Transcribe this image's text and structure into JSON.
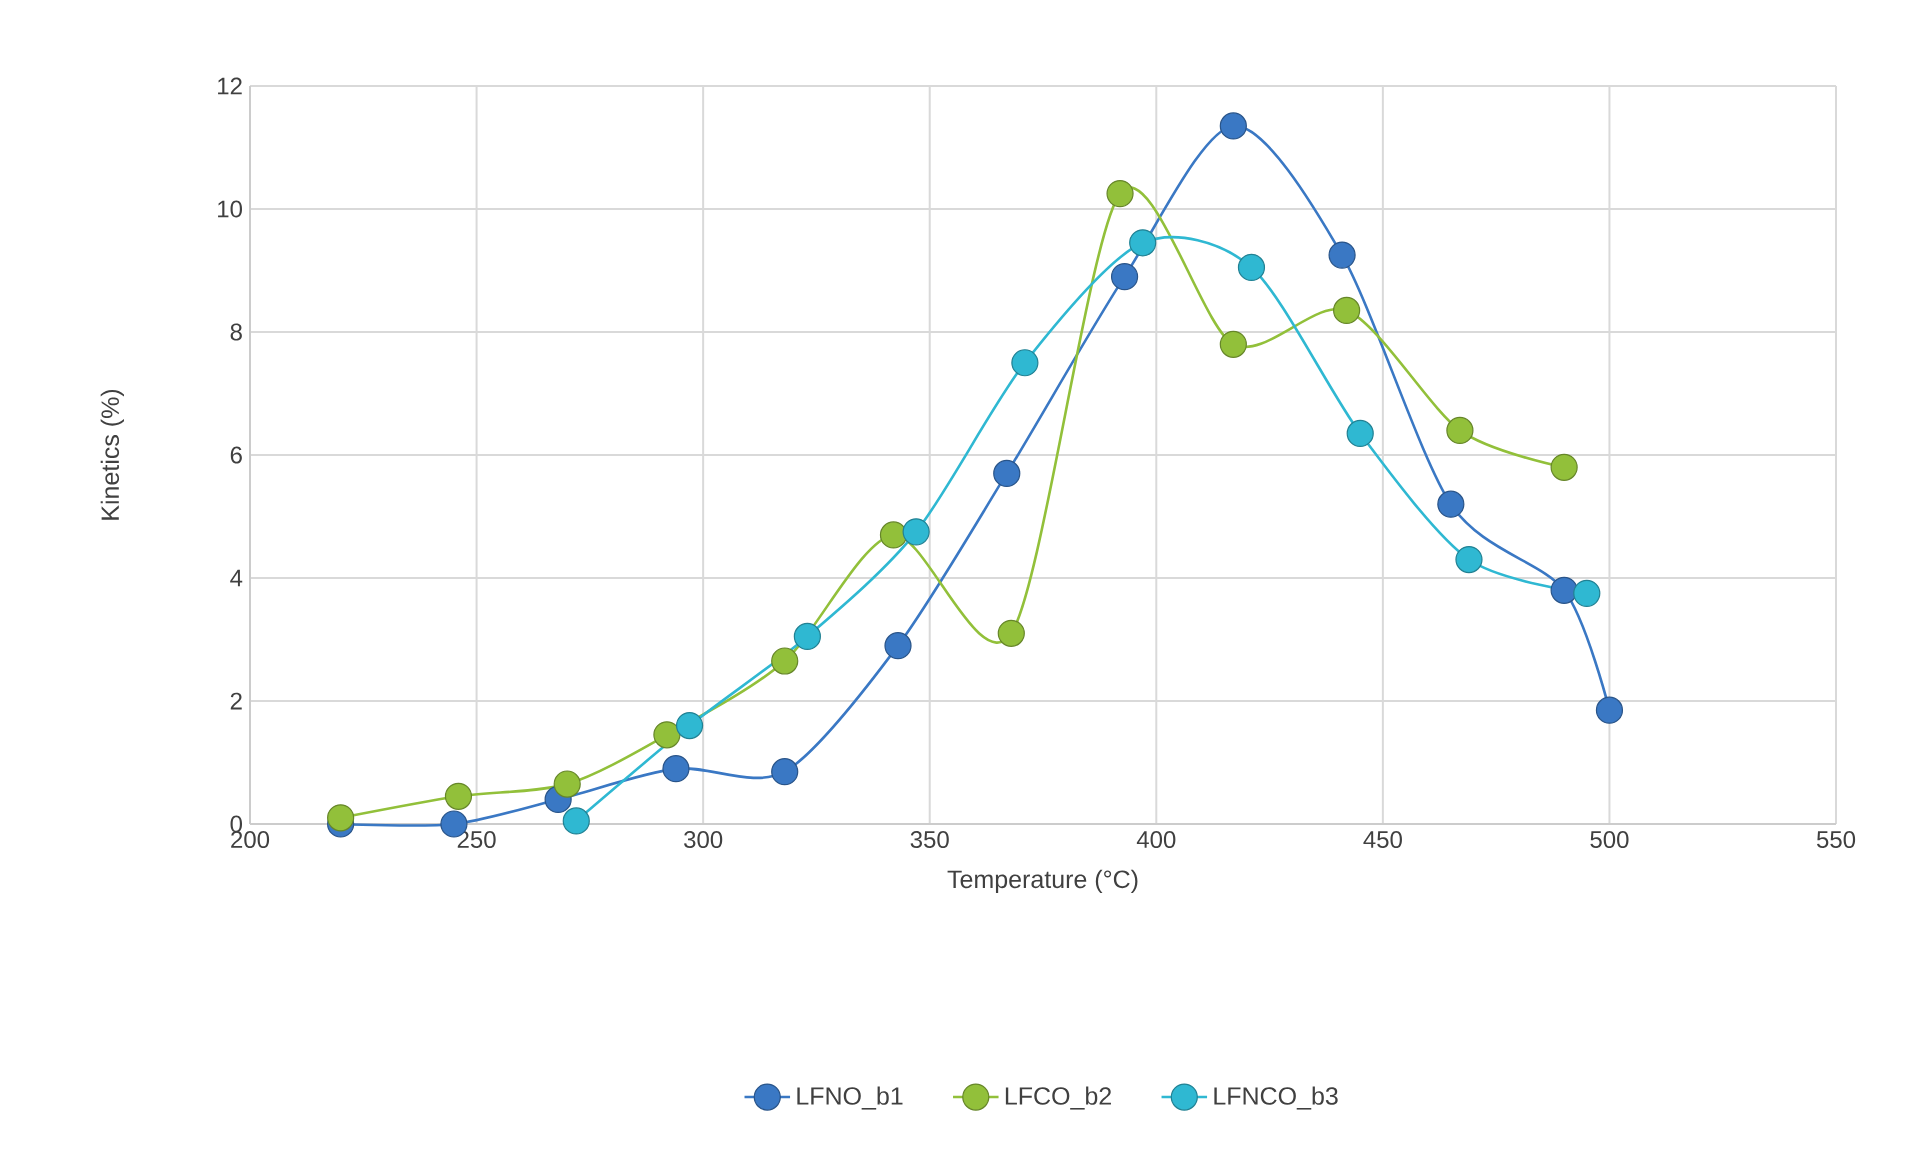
{
  "chart_data": {
    "type": "line",
    "xlabel": "Temperature (°C)",
    "ylabel": "Kinetics (%)",
    "xlim": [
      200,
      550
    ],
    "ylim": [
      0,
      12
    ],
    "xticks": [
      200,
      250,
      300,
      350,
      400,
      450,
      500,
      550
    ],
    "yticks": [
      0,
      2,
      4,
      6,
      8,
      10,
      12
    ],
    "grid": true,
    "legend": "bottom",
    "marker": "circle",
    "line_style": "solid",
    "series": [
      {
        "name": "LFNO_b1",
        "color": "#3a78c4",
        "x": [
          220,
          245,
          268,
          294,
          318,
          343,
          367,
          393,
          417,
          441,
          465,
          490,
          500
        ],
        "values": [
          0,
          0,
          0.4,
          0.9,
          0.85,
          2.9,
          5.7,
          8.9,
          11.35,
          9.25,
          5.2,
          3.8,
          1.85
        ]
      },
      {
        "name": "LFCO_b2",
        "color": "#92c03a",
        "x": [
          220,
          246,
          270,
          292,
          318,
          342,
          368,
          392,
          417,
          442,
          467,
          490
        ],
        "values": [
          0.1,
          0.45,
          0.65,
          1.45,
          2.65,
          4.7,
          3.1,
          10.25,
          7.8,
          8.35,
          6.4,
          5.8
        ]
      },
      {
        "name": "LFNCO_b3",
        "color": "#2fb8d2",
        "x": [
          272,
          297,
          323,
          347,
          371,
          397,
          421,
          445,
          469,
          495
        ],
        "values": [
          0.05,
          1.6,
          3.05,
          4.75,
          7.5,
          9.45,
          9.05,
          6.35,
          4.3,
          3.75
        ]
      }
    ]
  }
}
